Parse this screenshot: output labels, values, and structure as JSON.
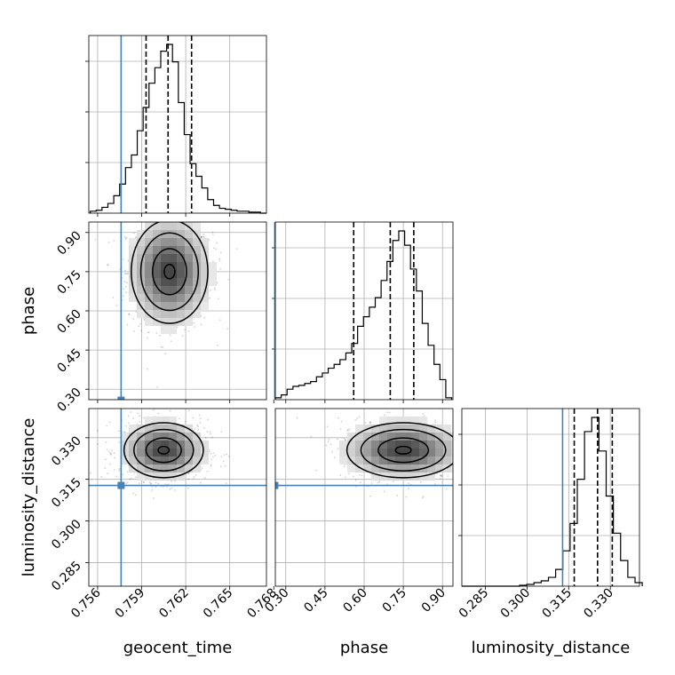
{
  "chart_data": {
    "type": "corner",
    "parameters": [
      {
        "name": "geocent_time",
        "axis_label": "geocent_time",
        "ticks": [
          0.756,
          0.759,
          0.762,
          0.765,
          0.768
        ],
        "tick_labels": [
          "0.756",
          "0.759",
          "0.762",
          "0.765",
          "0.768"
        ],
        "range": [
          0.7554,
          0.7675
        ],
        "truth": 0.7576,
        "quantiles": [
          0.7593,
          0.7608,
          0.7624
        ]
      },
      {
        "name": "phase",
        "axis_label": "phase",
        "ticks": [
          0.3,
          0.45,
          0.6,
          0.75,
          0.9
        ],
        "tick_labels": [
          "0.30",
          "0.45",
          "0.60",
          "0.75",
          "0.90"
        ],
        "range": [
          0.26,
          0.94
        ],
        "truth": 0.258,
        "quantiles": [
          0.56,
          0.7,
          0.79
        ]
      },
      {
        "name": "luminosity_distance",
        "axis_label": "luminosity_distance",
        "ticks": [
          0.285,
          0.3,
          0.315,
          0.33
        ],
        "tick_labels": [
          "0.285",
          "0.300",
          "0.315",
          "0.330"
        ],
        "range": [
          0.2765,
          0.3405
        ],
        "truth": 0.3128,
        "quantiles": [
          0.317,
          0.3254,
          0.3307
        ]
      }
    ],
    "histograms": {
      "geocent_time": {
        "bin_edges": [
          0.7555,
          0.7559,
          0.7563,
          0.7567,
          0.7571,
          0.7575,
          0.7579,
          0.7583,
          0.7587,
          0.7591,
          0.7595,
          0.7599,
          0.7603,
          0.7607,
          0.7611,
          0.7615,
          0.7619,
          0.7623,
          0.7627,
          0.7631,
          0.7635,
          0.7639,
          0.7643,
          0.7647,
          0.7651,
          0.7655,
          0.7659,
          0.7663,
          0.7667,
          0.7671,
          0.7675
        ],
        "counts": [
          2,
          3,
          6,
          10,
          18,
          30,
          47,
          60,
          85,
          109,
          134,
          150,
          167,
          174,
          156,
          114,
          81,
          51,
          38,
          26,
          14,
          8,
          5,
          4,
          3,
          2,
          2,
          1,
          1,
          0
        ]
      },
      "phase": {
        "bin_edges": [
          0.26,
          0.2825,
          0.305,
          0.3275,
          0.35,
          0.3725,
          0.395,
          0.4175,
          0.44,
          0.4625,
          0.485,
          0.5075,
          0.53,
          0.5525,
          0.575,
          0.5975,
          0.62,
          0.6425,
          0.665,
          0.6875,
          0.71,
          0.7325,
          0.755,
          0.7775,
          0.8,
          0.8225,
          0.845,
          0.8675,
          0.89,
          0.9125,
          0.935
        ],
        "counts": [
          2,
          5,
          11,
          14,
          15,
          17,
          19,
          24,
          28,
          33,
          37,
          42,
          49,
          59,
          77,
          87,
          97,
          107,
          125,
          145,
          167,
          177,
          162,
          137,
          114,
          80,
          57,
          37,
          21,
          2
        ]
      },
      "luminosity_distance": {
        "bin_edges": [
          0.2765,
          0.2791,
          0.2817,
          0.2843,
          0.2869,
          0.2895,
          0.2921,
          0.2947,
          0.2973,
          0.2999,
          0.3025,
          0.3051,
          0.3077,
          0.3103,
          0.3129,
          0.3155,
          0.3181,
          0.3207,
          0.3233,
          0.3259,
          0.3285,
          0.3311,
          0.3337,
          0.3363,
          0.3389,
          0.3415
        ],
        "counts": [
          0,
          0,
          0,
          0,
          0,
          0,
          0,
          0,
          1,
          2,
          4,
          6,
          10,
          19,
          40,
          71,
          121,
          175,
          191,
          153,
          102,
          60,
          29,
          10,
          4
        ]
      }
    },
    "pairs": [
      {
        "x": "geocent_time",
        "y": "phase",
        "peak": [
          0.7609,
          0.75
        ],
        "spread": [
          0.00145,
          0.11
        ],
        "contour_levels": 4
      },
      {
        "x": "geocent_time",
        "y": "luminosity_distance",
        "peak": [
          0.7605,
          0.3255
        ],
        "spread": [
          0.0015,
          0.0055
        ],
        "contour_levels": 4
      },
      {
        "x": "phase",
        "y": "luminosity_distance",
        "peak": [
          0.75,
          0.3255
        ],
        "spread": [
          0.12,
          0.0055
        ],
        "contour_levels": 4
      }
    ],
    "grid": true,
    "truth_color": "#4682b4",
    "quantile_style": "dashed",
    "contour_color": "#000000"
  }
}
